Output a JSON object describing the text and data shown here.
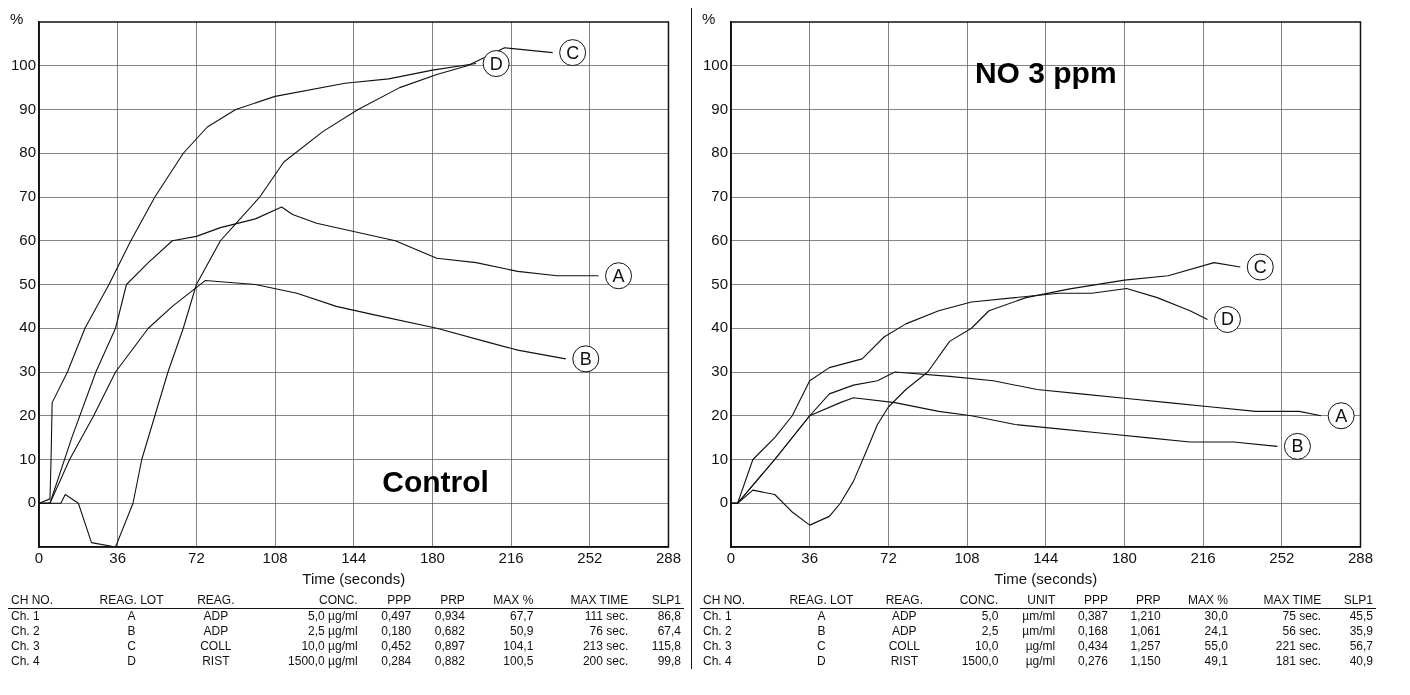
{
  "chart_data": [
    {
      "type": "line",
      "title": "Control",
      "xlabel": "Time (seconds)",
      "ylabel": "%",
      "xlim": [
        0,
        288
      ],
      "ylim": [
        -10,
        110
      ],
      "xticks": [
        0,
        36,
        72,
        108,
        144,
        180,
        216,
        252,
        288
      ],
      "yticks": [
        0,
        10,
        20,
        30,
        40,
        50,
        60,
        70,
        80,
        90,
        100
      ],
      "grid": true,
      "legend": false,
      "marker": "none",
      "line_style": "solid",
      "series": [
        {
          "name": "A",
          "color": "#111111",
          "x": [
            0,
            5,
            15,
            26,
            35,
            40,
            50,
            61,
            72,
            83,
            99,
            111,
            116,
            127,
            145,
            163,
            182,
            200,
            219,
            237,
            256
          ],
          "values": [
            0,
            0,
            15,
            30,
            40,
            50,
            55,
            60,
            61,
            63,
            65,
            67.7,
            66,
            64,
            62,
            60,
            56,
            55,
            53,
            52,
            52
          ]
        },
        {
          "name": "B",
          "color": "#111111",
          "x": [
            0,
            5,
            14,
            25,
            35,
            50,
            61,
            76,
            99,
            118,
            136,
            154,
            182,
            204,
            219,
            241
          ],
          "values": [
            0,
            0,
            10,
            20,
            30,
            40,
            45,
            50.9,
            50,
            48,
            45,
            43,
            40,
            37,
            35,
            33
          ]
        },
        {
          "name": "C",
          "color": "#111111",
          "x": [
            0,
            10,
            12,
            18,
            24,
            35,
            43,
            47,
            53,
            59,
            66,
            72,
            83,
            92,
            101,
            112,
            130,
            146,
            165,
            182,
            196,
            213,
            235
          ],
          "values": [
            0,
            0,
            2,
            0,
            -9,
            -10,
            0,
            10,
            20,
            30,
            40,
            50,
            60,
            65,
            70,
            78,
            85,
            90,
            95,
            98,
            100,
            104.1,
            103
          ]
        },
        {
          "name": "D",
          "color": "#111111",
          "x": [
            0,
            5,
            5.5,
            6,
            13,
            21,
            32,
            42,
            53,
            66,
            77,
            90,
            108,
            140,
            160,
            180,
            200
          ],
          "values": [
            0,
            1,
            10,
            23,
            30,
            40,
            50,
            60,
            70,
            80,
            86,
            90,
            93,
            96,
            97,
            99,
            100.5
          ]
        }
      ],
      "annotations": [
        "CH NO.  REAG. LOT  REAG.  CONC.  PPP  PRP  MAX %  MAX TIME  SLP1",
        "Ch. 1  A  ADP  5,0 µg/ml  0,497  0,934  67,7  111 sec.  86,8",
        "Ch. 2  B  ADP  2,5 µg/ml  0,180  0,682  50,9  76 sec.  67,4",
        "Ch. 3  C  COLL  10,0 µg/ml  0,452  0,897  104,1  213 sec.  115,8",
        "Ch. 4  D  RIST  1500,0 µg/ml  0,284  0,882  100,5  200 sec.  99,8"
      ]
    },
    {
      "type": "line",
      "title": "NO 3 ppm",
      "xlabel": "Time (seconds)",
      "ylabel": "%",
      "xlim": [
        0,
        288
      ],
      "ylim": [
        -10,
        110
      ],
      "xticks": [
        0,
        36,
        72,
        108,
        144,
        180,
        216,
        252,
        288
      ],
      "yticks": [
        0,
        10,
        20,
        30,
        40,
        50,
        60,
        70,
        80,
        90,
        100
      ],
      "grid": true,
      "legend": false,
      "marker": "none",
      "line_style": "solid",
      "series": [
        {
          "name": "A",
          "color": "#111111",
          "x": [
            0,
            3,
            20,
            36,
            45,
            56,
            67,
            75,
            100,
            120,
            140,
            160,
            180,
            200,
            220,
            240,
            260,
            270
          ],
          "values": [
            0,
            0,
            10,
            20,
            25,
            27,
            28,
            30,
            29,
            28,
            26,
            25,
            24,
            23,
            22,
            21,
            21,
            20
          ]
        },
        {
          "name": "B",
          "color": "#111111",
          "x": [
            0,
            3,
            20,
            36,
            50,
            56,
            75,
            95,
            110,
            130,
            150,
            170,
            190,
            210,
            230,
            250
          ],
          "values": [
            0,
            0,
            10,
            20,
            23,
            24.1,
            23,
            21,
            20,
            18,
            17,
            16,
            15,
            14,
            14,
            13
          ]
        },
        {
          "name": "C",
          "color": "#111111",
          "x": [
            0,
            3,
            10,
            20,
            28,
            36,
            45,
            50,
            56,
            62,
            67,
            72,
            80,
            90,
            100,
            110,
            118,
            135,
            155,
            180,
            200,
            221,
            233
          ],
          "values": [
            0,
            0,
            3,
            2,
            -2,
            -5,
            -3,
            0,
            5,
            12,
            18,
            22,
            26,
            30,
            37,
            40,
            44,
            47,
            49,
            51,
            52,
            55,
            54
          ]
        },
        {
          "name": "D",
          "color": "#111111",
          "x": [
            0,
            3,
            10,
            20,
            28,
            36,
            45,
            60,
            70,
            80,
            95,
            110,
            130,
            150,
            165,
            181,
            195,
            210,
            218
          ],
          "values": [
            0,
            0,
            10,
            15,
            20,
            28,
            31,
            33,
            38,
            41,
            44,
            46,
            47,
            48,
            48,
            49.1,
            47,
            44,
            42
          ]
        }
      ],
      "annotations": [
        "CH NO.  REAG. LOT  REAG.  CONC.  UNIT  PPP  PRP  MAX %  MAX TIME  SLP1",
        "Ch. 1  A  ADP  5,0  µm/ml  0,387  1,210  30,0  75 sec.  45,5",
        "Ch. 2  B  ADP  2,5  µm/ml  0,168  1,061  24,1  56 sec.  35,9",
        "Ch. 3  C  COLL  10,0  µg/ml  0,434  1,257  55,0  221 sec.  56,7",
        "Ch. 4  D  RIST  1500,0  µg/ml  0,276  1,150  49,1  181 sec.  40,9"
      ]
    }
  ]
}
